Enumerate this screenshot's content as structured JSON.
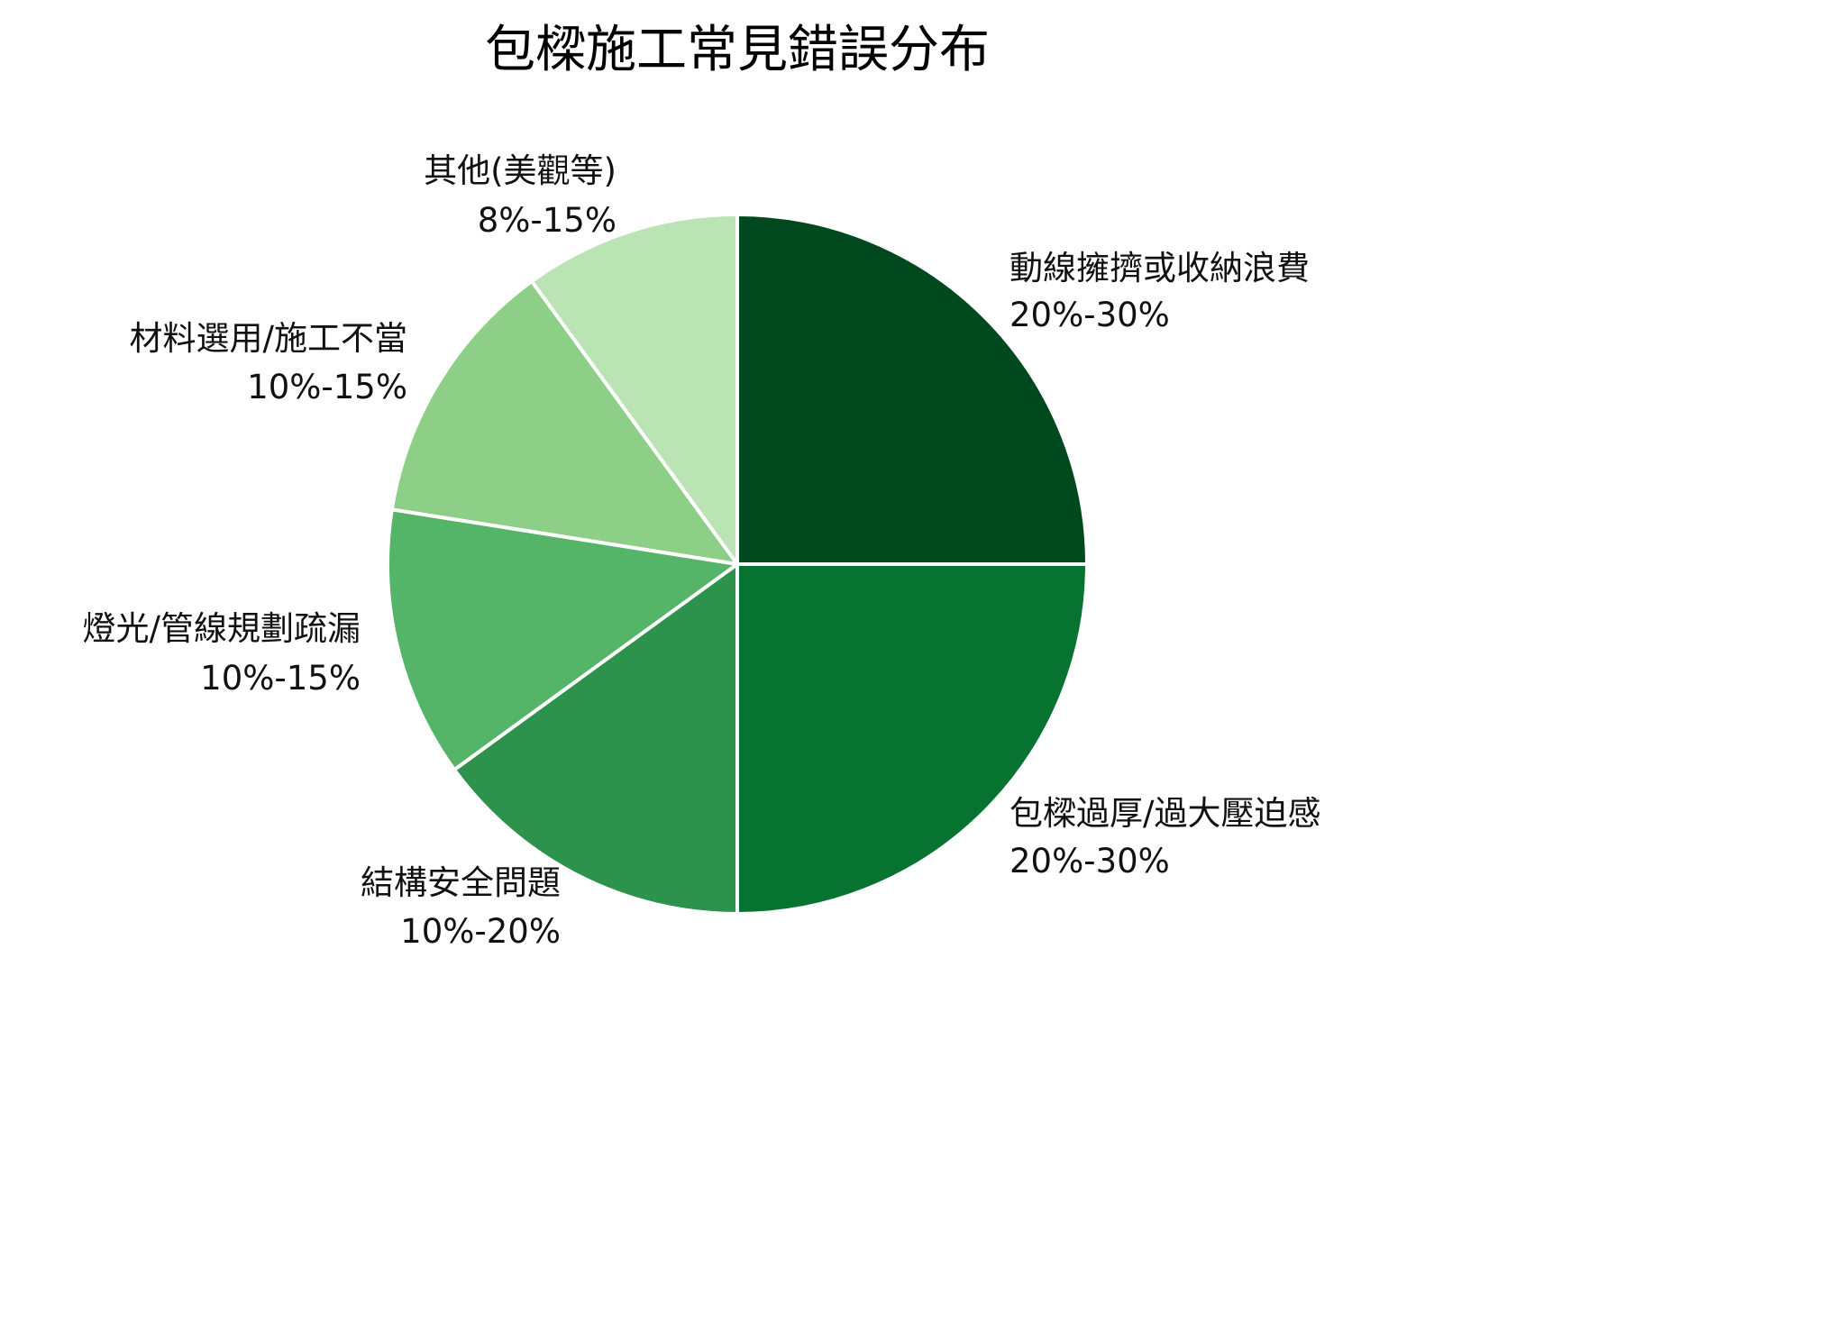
{
  "chart_data": {
    "type": "pie",
    "title": "包樑施工常見錯誤分布",
    "slices": [
      {
        "label": "動線擁擠或收納浪費",
        "range_label": "20%-30%",
        "value": 25,
        "color": "#00491e"
      },
      {
        "label": "包樑過厚/過大壓迫感",
        "range_label": "20%-30%",
        "value": 25,
        "color": "#067330"
      },
      {
        "label": "結構安全問題",
        "range_label": "10%-20%",
        "value": 15,
        "color": "#2d934c"
      },
      {
        "label": "燈光/管線規劃疏漏",
        "range_label": "10%-15%",
        "value": 12.5,
        "color": "#54b468"
      },
      {
        "label": "材料選用/施工不當",
        "range_label": "10%-15%",
        "value": 12.5,
        "color": "#8ecf88"
      },
      {
        "label": "其他(美觀等)",
        "range_label": "8%-15%",
        "value": 10,
        "color": "#bae4b3"
      }
    ],
    "start_angle_deg": 0,
    "direction": "clockwise",
    "slice_border_color": "#ffffff",
    "legend": "none"
  }
}
